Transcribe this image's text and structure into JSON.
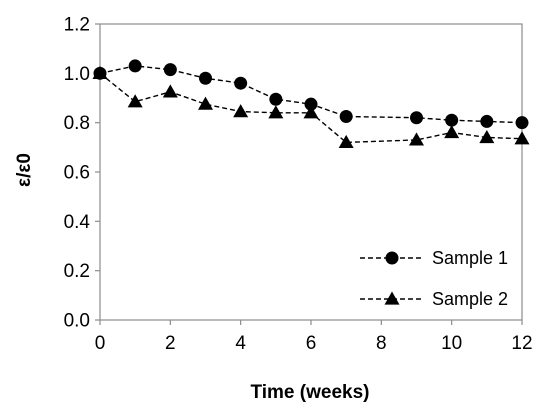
{
  "chart_data": {
    "type": "line",
    "title": "",
    "xlabel": "Time (weeks)",
    "ylabel": "ε/ε0",
    "xlim": [
      0,
      12
    ],
    "ylim": [
      0,
      1.2
    ],
    "x_ticks": [
      "0",
      "2",
      "4",
      "6",
      "8",
      "10",
      "12"
    ],
    "y_ticks": [
      "0.0",
      "0.2",
      "0.4",
      "0.6",
      "0.8",
      "1.0",
      "1.2"
    ],
    "grid": false,
    "legend_position": "bottom-right",
    "line_style": "dashed",
    "line_color": "#000000",
    "series": [
      {
        "name": "Sample 1",
        "marker": "circle",
        "x": [
          0,
          1,
          2,
          3,
          4,
          5,
          6,
          7,
          9,
          10,
          11,
          12
        ],
        "y": [
          1.0,
          1.03,
          1.015,
          0.98,
          0.96,
          0.895,
          0.875,
          0.825,
          0.82,
          0.81,
          0.805,
          0.8
        ]
      },
      {
        "name": "Sample 2",
        "marker": "triangle",
        "x": [
          0,
          1,
          2,
          3,
          4,
          5,
          6,
          7,
          9,
          10,
          11,
          12
        ],
        "y": [
          1.0,
          0.885,
          0.925,
          0.875,
          0.845,
          0.84,
          0.84,
          0.72,
          0.73,
          0.76,
          0.74,
          0.735
        ]
      }
    ]
  }
}
